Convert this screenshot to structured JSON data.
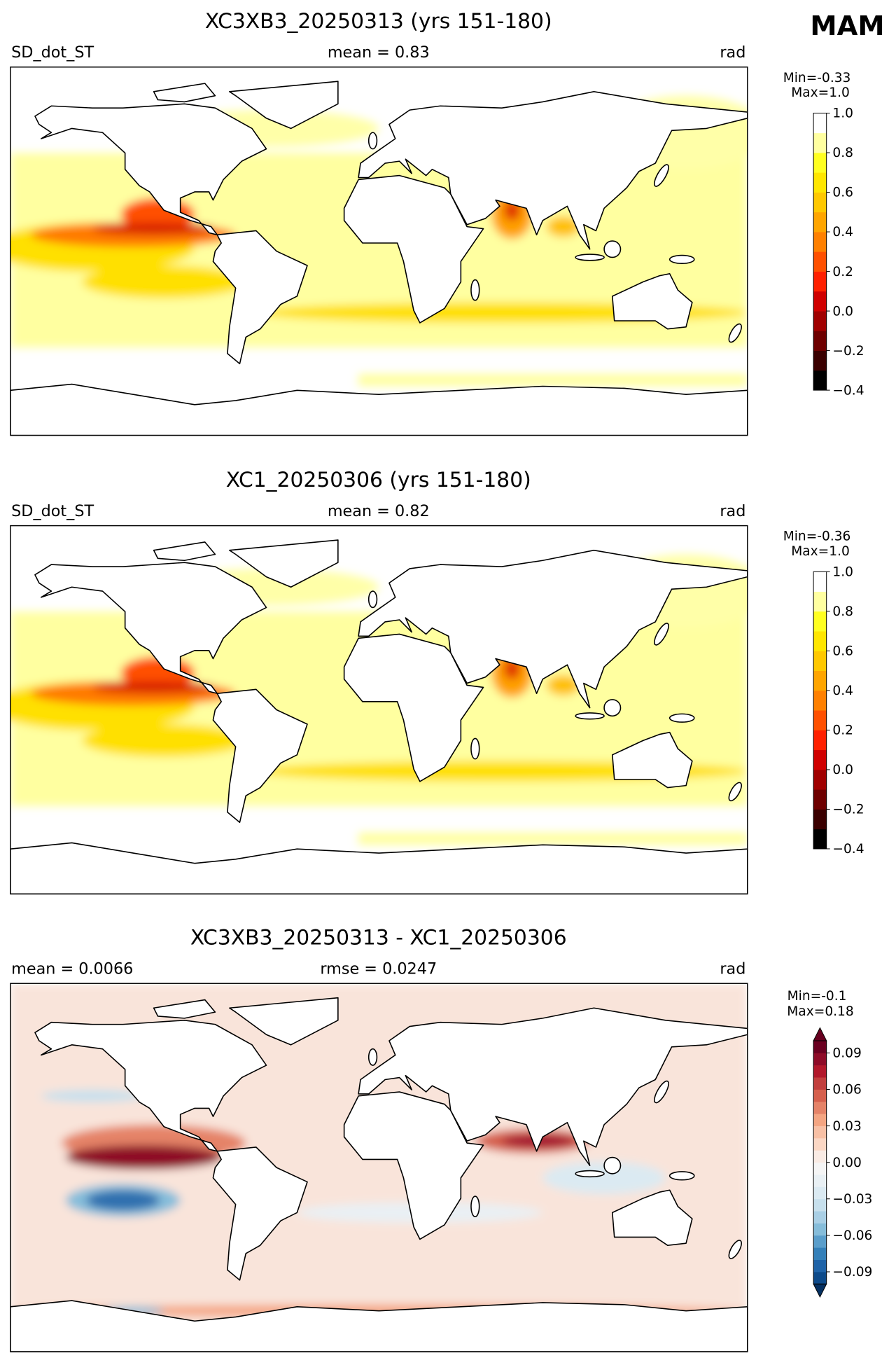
{
  "season": "MAM",
  "panels": [
    {
      "title": "XC3XB3_20250313 (yrs 151-180)",
      "left": "SD_dot_ST",
      "center": "mean = 0.83",
      "right": "rad",
      "colorbar": {
        "min_label": "Min=-0.33",
        "max_label": "Max=1.0",
        "lim": [
          -0.4,
          1.0
        ],
        "ticks": [
          {
            "value": -0.4,
            "label": "−0.4"
          },
          {
            "value": -0.2,
            "label": "−0.2"
          },
          {
            "value": 0.0,
            "label": "0.0"
          },
          0.2,
          0.4,
          0.6,
          0.8,
          {
            "value": 1.0,
            "label": "1.0"
          }
        ],
        "colors": [
          "#000000",
          "#3a0000",
          "#6e0000",
          "#a00000",
          "#d00000",
          "#ff2000",
          "#ff5000",
          "#ff8000",
          "#ffa500",
          "#ffc800",
          "#ffe600",
          "#ffff20",
          "#ffffa0",
          "#ffffff"
        ]
      }
    },
    {
      "title": "XC1_20250306 (yrs 151-180)",
      "left": "SD_dot_ST",
      "center": "mean = 0.82",
      "right": "rad",
      "colorbar": {
        "min_label": "Min=-0.36",
        "max_label": "Max=1.0",
        "lim": [
          -0.4,
          1.0
        ],
        "ticks": [
          {
            "value": -0.4,
            "label": "−0.4"
          },
          {
            "value": -0.2,
            "label": "−0.2"
          },
          {
            "value": 0.0,
            "label": "0.0"
          },
          0.2,
          0.4,
          0.6,
          0.8,
          {
            "value": 1.0,
            "label": "1.0"
          }
        ],
        "colors": [
          "#000000",
          "#3a0000",
          "#6e0000",
          "#a00000",
          "#d00000",
          "#ff2000",
          "#ff5000",
          "#ff8000",
          "#ffa500",
          "#ffc800",
          "#ffe600",
          "#ffff20",
          "#ffffa0",
          "#ffffff"
        ]
      }
    },
    {
      "title": "XC3XB3_20250313 - XC1_20250306",
      "left": "mean = 0.0066",
      "center": "rmse = 0.0247",
      "right": "rad",
      "colorbar": {
        "min_label": "Min=-0.1",
        "max_label": "Max=0.18",
        "lim": [
          -0.1,
          0.1
        ],
        "ticks": [
          {
            "value": -0.09,
            "label": "−0.09"
          },
          {
            "value": -0.06,
            "label": "−0.06"
          },
          {
            "value": -0.03,
            "label": "−0.03"
          },
          {
            "value": 0.0,
            "label": "0.00"
          },
          0.03,
          0.06,
          0.09
        ],
        "colors": [
          "#0d4a8a",
          "#1f63a8",
          "#3480b9",
          "#5a9ecb",
          "#86bdda",
          "#a9cfe5",
          "#c7e0ed",
          "#dbeaf2",
          "#e9f0f4",
          "#f5f5f5",
          "#f9ebe4",
          "#fbd7c4",
          "#f8c0a5",
          "#f4a582",
          "#e58368",
          "#d6604d",
          "#c23f3d",
          "#b2182b",
          "#8e0b28",
          "#6a0020"
        ],
        "extend_colors": [
          "#053061",
          "#67001f"
        ]
      }
    }
  ]
}
